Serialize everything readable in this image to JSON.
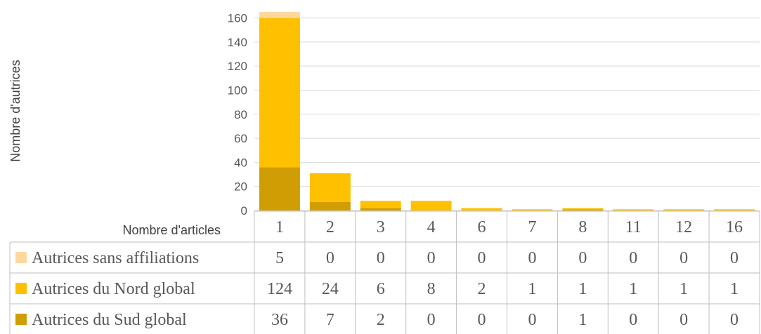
{
  "chart_data": {
    "type": "bar",
    "stacked": true,
    "categories": [
      "1",
      "2",
      "3",
      "4",
      "6",
      "7",
      "8",
      "11",
      "12",
      "16"
    ],
    "series": [
      {
        "name": "Autrices sans affiliations",
        "values": [
          5,
          0,
          0,
          0,
          0,
          0,
          0,
          0,
          0,
          0
        ],
        "color": "#fdd9a0"
      },
      {
        "name": "Autrices du Nord global",
        "values": [
          124,
          24,
          6,
          8,
          2,
          1,
          1,
          1,
          1,
          1
        ],
        "color": "#ffc000"
      },
      {
        "name": "Autrices du Sud global",
        "values": [
          36,
          7,
          2,
          0,
          0,
          0,
          1,
          0,
          0,
          0
        ],
        "color": "#d09e04"
      }
    ],
    "stack_order": [
      "Autrices du Sud global",
      "Autrices du Nord global",
      "Autrices sans affiliations"
    ],
    "xlabel": "Nombre d'articles",
    "ylabel": "Nombre d'autrices",
    "ylim": [
      0,
      165
    ],
    "yticks": [
      0,
      20,
      40,
      60,
      80,
      100,
      120,
      140,
      160
    ],
    "grid": true,
    "legend": "data-table"
  }
}
